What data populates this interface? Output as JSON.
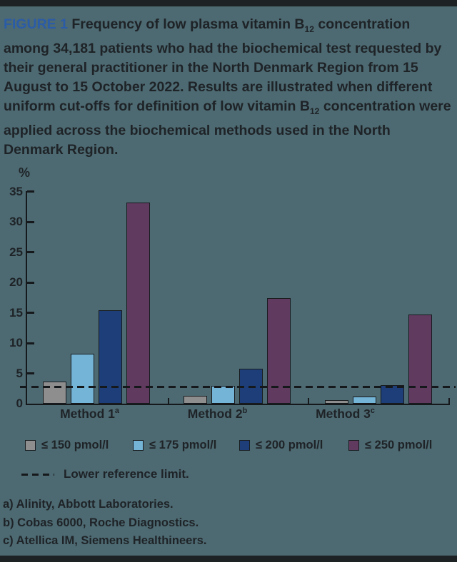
{
  "figure": {
    "label": "FIGURE 1",
    "title_part1": " Frequency of low plasma vitamin B",
    "title_sub1": "12",
    "title_part2": " concentration among 34,181 patients who had the biochemical test requested by their general practitioner in the North Denmark Region from 15 August to 15 October 2022. Results are illustrated when different uniform cut-offs for definition of low vitamin B",
    "title_sub2": "12",
    "title_part3": " concentration were applied across the biochemical methods used in the North Denmark Region."
  },
  "chart_data": {
    "type": "bar",
    "ylabel": "%",
    "ylim": [
      0,
      35
    ],
    "y_ticks": [
      0,
      5,
      10,
      15,
      20,
      25,
      30,
      35
    ],
    "grid": "off",
    "legend_position": "below",
    "categories": [
      {
        "name": "Method 1",
        "sup": "a"
      },
      {
        "name": "Method 2",
        "sup": "b"
      },
      {
        "name": "Method 3",
        "sup": "c"
      }
    ],
    "series": [
      {
        "name": "≤ 150 pmol/l",
        "color": "#8e8e8e",
        "values": [
          3.6,
          1.3,
          0.6
        ]
      },
      {
        "name": "≤ 175 pmol/l",
        "color": "#74b4d6",
        "values": [
          8.2,
          2.9,
          1.2
        ]
      },
      {
        "name": "≤ 200 pmol/l",
        "color": "#1d3e78",
        "values": [
          15.4,
          5.8,
          3.1
        ]
      },
      {
        "name": "≤ 250 pmol/l",
        "color": "#613a5f",
        "values": [
          33.2,
          17.4,
          14.7
        ]
      }
    ],
    "reference_line": {
      "label": "Lower reference limit.",
      "value": 2.8
    }
  },
  "footnotes": [
    "a) Alinity, Abbott Laboratories.",
    "b) Cobas 6000, Roche Diagnostics.",
    "c) Atellica IM, Siemens Healthineers."
  ],
  "colors": {
    "background": "#4d6971",
    "ink": "#16191c",
    "figure_label_blue": "#2b5ca7",
    "edge_bars": "#1d2325"
  }
}
